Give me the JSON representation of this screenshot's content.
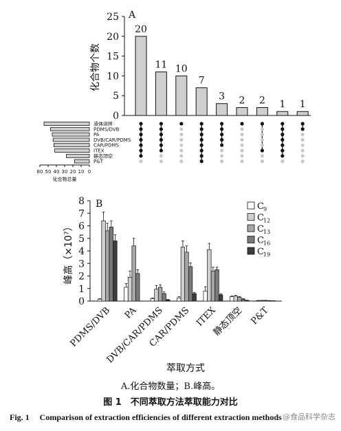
{
  "chart_data": [
    {
      "type": "bar",
      "panel": "A",
      "ylabel": "化合物个数",
      "ylim": [
        0,
        25
      ],
      "yticks": [
        0,
        5,
        10,
        15,
        20,
        25
      ],
      "values": [
        20,
        11,
        10,
        7,
        3,
        2,
        2,
        1,
        1
      ],
      "sets": [
        "液体进样",
        "PDMS/DVB",
        "PA",
        "DVB/CAR/PDMS",
        "CAR/PDMS",
        "ITEX",
        "静态顶空",
        "P&T"
      ],
      "set_sizes": [
        55,
        47,
        45,
        44,
        43,
        42,
        28,
        18
      ],
      "set_size_label": "化合物总量",
      "set_size_ticks": [
        60,
        50,
        40,
        30,
        20,
        10,
        0
      ],
      "membership": [
        [
          1,
          1,
          1,
          1,
          1,
          1,
          1,
          0
        ],
        [
          1,
          1,
          1,
          1,
          1,
          1,
          0,
          0
        ],
        [
          1,
          0,
          0,
          0,
          0,
          0,
          0,
          0
        ],
        [
          1,
          1,
          1,
          1,
          1,
          1,
          1,
          1
        ],
        [
          1,
          1,
          1,
          1,
          1,
          0,
          0,
          0
        ],
        [
          1,
          0,
          0,
          0,
          0,
          0,
          0,
          0
        ],
        [
          1,
          0,
          0,
          0,
          0,
          1,
          0,
          0
        ],
        [
          1,
          1,
          1,
          1,
          1,
          1,
          1,
          0
        ],
        [
          1,
          1,
          0,
          0,
          0,
          0,
          0,
          0
        ]
      ]
    },
    {
      "type": "bar",
      "panel": "B",
      "ylabel": "峰高（×10⁷）",
      "xlabel": "萃取方式",
      "ylim": [
        0,
        8
      ],
      "yticks": [
        0,
        1,
        2,
        3,
        4,
        5,
        6,
        7,
        8
      ],
      "categories": [
        "PDMS/DVB",
        "PA",
        "DVB/CAR/PDMS",
        "CAR/PDMS",
        "ITEX",
        "静态顶空",
        "P&T"
      ],
      "series": [
        {
          "name": "C9",
          "color": "#ffffff",
          "values": [
            0.15,
            1.1,
            0.2,
            0.25,
            0.8,
            0.35,
            0.04
          ],
          "err": [
            0.05,
            0.3,
            0.05,
            0.1,
            0.35,
            0.05,
            0.01
          ]
        },
        {
          "name": "C12",
          "color": "#cfcfcf",
          "values": [
            6.4,
            1.9,
            0.95,
            4.3,
            4.1,
            0.4,
            0.05
          ],
          "err": [
            0.7,
            0.5,
            0.3,
            0.5,
            0.5,
            0.05,
            0.01
          ]
        },
        {
          "name": "C13",
          "color": "#a6a6a6",
          "values": [
            5.6,
            4.4,
            1.1,
            3.9,
            2.4,
            0.3,
            0.05
          ],
          "err": [
            0.6,
            0.6,
            0.2,
            0.5,
            0.3,
            0.05,
            0.01
          ]
        },
        {
          "name": "C16",
          "color": "#7a7a7a",
          "values": [
            5.9,
            2.2,
            0.6,
            2.75,
            2.5,
            0.15,
            0.03
          ],
          "err": [
            0.5,
            0.3,
            0.15,
            0.3,
            0.2,
            0.04,
            0.01
          ]
        },
        {
          "name": "C19",
          "color": "#3d3d3d",
          "values": [
            4.8,
            0.0,
            0.1,
            0.6,
            0.5,
            0.05,
            0.02
          ],
          "err": [
            0.5,
            0.0,
            0.03,
            0.1,
            0.08,
            0.02,
            0.01
          ]
        }
      ],
      "legend_position": "top-right"
    }
  ],
  "captions": {
    "sub": "A.化合物数量；B.峰高。",
    "cn": "图 1　不同萃取方法萃取能力对比",
    "en": "Fig. 1　 Comparison of extraction efficiencies of different extraction methods",
    "watermark": "@食品科学杂志"
  }
}
